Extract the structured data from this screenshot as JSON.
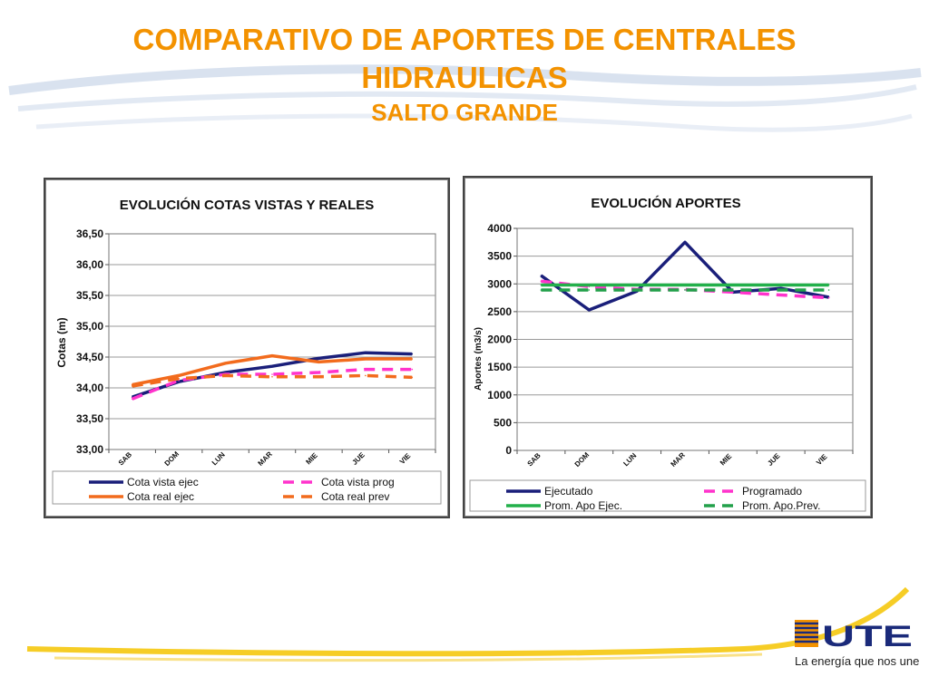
{
  "header": {
    "title_line1": "COMPARATIVO DE APORTES DE CENTRALES",
    "title_line2": "HIDRAULICAS",
    "subtitle": "SALTO GRANDE"
  },
  "brand": {
    "logo_text": "UTE",
    "tagline": "La energía que nos une",
    "accent_color": "#f39200",
    "logo_blue": "#1a2a7a"
  },
  "chart_data": [
    {
      "type": "line",
      "title": "EVOLUCIÓN  COTAS VISTAS Y REALES",
      "xlabel": "",
      "ylabel": "Cotas (m)",
      "categories": [
        "SAB",
        "DOM",
        "LUN",
        "MAR",
        "MIE",
        "JUE",
        "VIE"
      ],
      "ylim": [
        33.0,
        36.5
      ],
      "yticks": [
        "33,00",
        "33,50",
        "34,00",
        "34,50",
        "35,00",
        "35,50",
        "36,00",
        "36,50"
      ],
      "grid": true,
      "legend_position": "bottom",
      "series": [
        {
          "name": "Cota vista ejec",
          "color": "#1a1f7a",
          "dash": "solid",
          "values": [
            33.85,
            34.1,
            34.25,
            34.35,
            34.48,
            34.57,
            34.55
          ]
        },
        {
          "name": "Cota vista prog",
          "color": "#ff33cc",
          "dash": "dashed",
          "values": [
            33.82,
            34.12,
            34.22,
            34.22,
            34.25,
            34.3,
            34.3
          ]
        },
        {
          "name": "Cota real ejec",
          "color": "#f26b1d",
          "dash": "solid",
          "values": [
            34.05,
            34.2,
            34.4,
            34.52,
            34.42,
            34.47,
            34.47
          ]
        },
        {
          "name": "Cota real prev",
          "color": "#f26b1d",
          "dash": "dashed",
          "values": [
            34.03,
            34.15,
            34.2,
            34.18,
            34.18,
            34.2,
            34.17
          ]
        }
      ]
    },
    {
      "type": "line",
      "title": "EVOLUCIÓN  APORTES",
      "xlabel": "",
      "ylabel": "Aportes (m3/s)",
      "categories": [
        "SAB",
        "DOM",
        "LUN",
        "MAR",
        "MIE",
        "JUE",
        "VIE"
      ],
      "ylim": [
        0,
        4000
      ],
      "yticks": [
        "0",
        "500",
        "1000",
        "1500",
        "2000",
        "2500",
        "3000",
        "3500",
        "4000"
      ],
      "grid": true,
      "legend_position": "bottom",
      "series": [
        {
          "name": "Ejecutado",
          "color": "#1a1f7a",
          "dash": "solid",
          "values": [
            3150,
            2530,
            2870,
            3750,
            2850,
            2920,
            2760
          ]
        },
        {
          "name": "Programado",
          "color": "#ff33cc",
          "dash": "dashed",
          "values": [
            3050,
            2950,
            2900,
            2900,
            2850,
            2800,
            2750
          ]
        },
        {
          "name": "Prom. Apo Ejec.",
          "color": "#22b04a",
          "dash": "solid",
          "values": [
            2980,
            2980,
            2980,
            2980,
            2980,
            2980,
            2980
          ]
        },
        {
          "name": "Prom. Apo.Prev.",
          "color": "#22a04a",
          "dash": "dashed",
          "values": [
            2890,
            2890,
            2890,
            2890,
            2890,
            2890,
            2890
          ]
        }
      ]
    }
  ]
}
